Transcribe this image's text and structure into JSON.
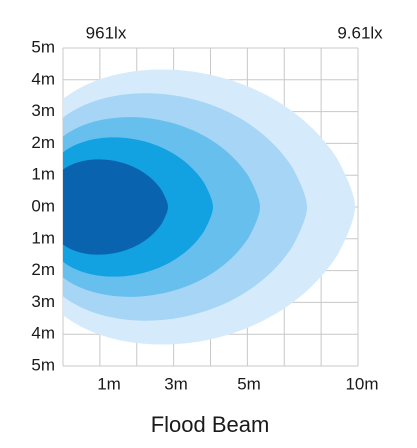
{
  "top_labels": {
    "left": "961lx",
    "right": "9.61lx"
  },
  "y_labels": [
    "5m",
    "4m",
    "3m",
    "2m",
    "1m",
    "0m",
    "1m",
    "2m",
    "3m",
    "4m",
    "5m"
  ],
  "x_labels": [
    "1m",
    "3m",
    "5m",
    "10m"
  ],
  "title": "Flood Beam"
}
